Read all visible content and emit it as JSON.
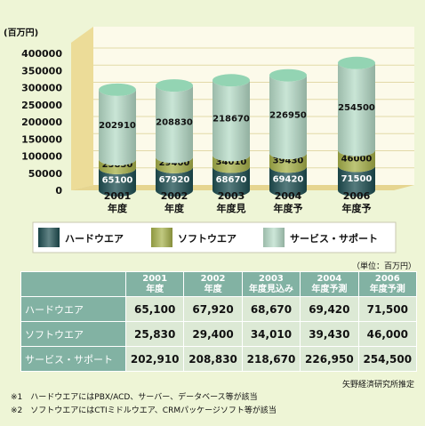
{
  "chart_data": {
    "type": "bar",
    "unit_label": "(百万円)",
    "y_ticks": [
      "400000",
      "350000",
      "300000",
      "250000",
      "200000",
      "150000",
      "100000",
      "50000",
      "0"
    ],
    "ylim": [
      0,
      400000
    ],
    "categories": [
      {
        "year": "2001",
        "suffix": "年度"
      },
      {
        "year": "2002",
        "suffix": "年度"
      },
      {
        "year": "2003",
        "suffix": "年度見"
      },
      {
        "year": "2004",
        "suffix": "年度予"
      },
      {
        "year": "2006",
        "suffix": "年度予"
      }
    ],
    "series": [
      {
        "name": "ハードウエア",
        "color": "#1e4f52",
        "values": [
          65100,
          67920,
          68670,
          69420,
          71500
        ],
        "labels": [
          "65100",
          "67920",
          "68670",
          "69420",
          "71500"
        ]
      },
      {
        "name": "ソフトウエア",
        "color": "#a7b24a",
        "values": [
          25830,
          29400,
          34010,
          39430,
          46000
        ],
        "labels": [
          "25830",
          "29400",
          "34010",
          "39430",
          "46000"
        ]
      },
      {
        "name": "サービス・サポート",
        "color": "#b7dcc8",
        "values": [
          202910,
          208830,
          218670,
          226950,
          254500
        ],
        "labels": [
          "202910",
          "208830",
          "218670",
          "226950",
          "254500"
        ]
      }
    ],
    "legend_position": "bottom"
  },
  "table": {
    "unit_note": "（単位：百万円）",
    "headers": [
      {
        "line1": "2001",
        "line2": "年度"
      },
      {
        "line1": "2002",
        "line2": "年度"
      },
      {
        "line1": "2003",
        "line2": "年度見込み"
      },
      {
        "line1": "2004",
        "line2": "年度予測"
      },
      {
        "line1": "2006",
        "line2": "年度予測"
      }
    ],
    "rows": [
      {
        "label": "ハードウエア",
        "values": [
          "65,100",
          "67,920",
          "68,670",
          "69,420",
          "71,500"
        ]
      },
      {
        "label": "ソフトウエア",
        "values": [
          "25,830",
          "29,400",
          "34,010",
          "39,430",
          "46,000"
        ]
      },
      {
        "label": "サービス・サポート",
        "values": [
          "202,910",
          "208,830",
          "218,670",
          "226,950",
          "254,500"
        ]
      }
    ]
  },
  "source": "矢野経済研究所推定",
  "notes": [
    "※1　ハードウエアにはPBX/ACD、サーバー、データベース等が該当",
    "※2　ソフトウエアにはCTIミドルウエア、CRMパッケージソフト等が該当"
  ]
}
